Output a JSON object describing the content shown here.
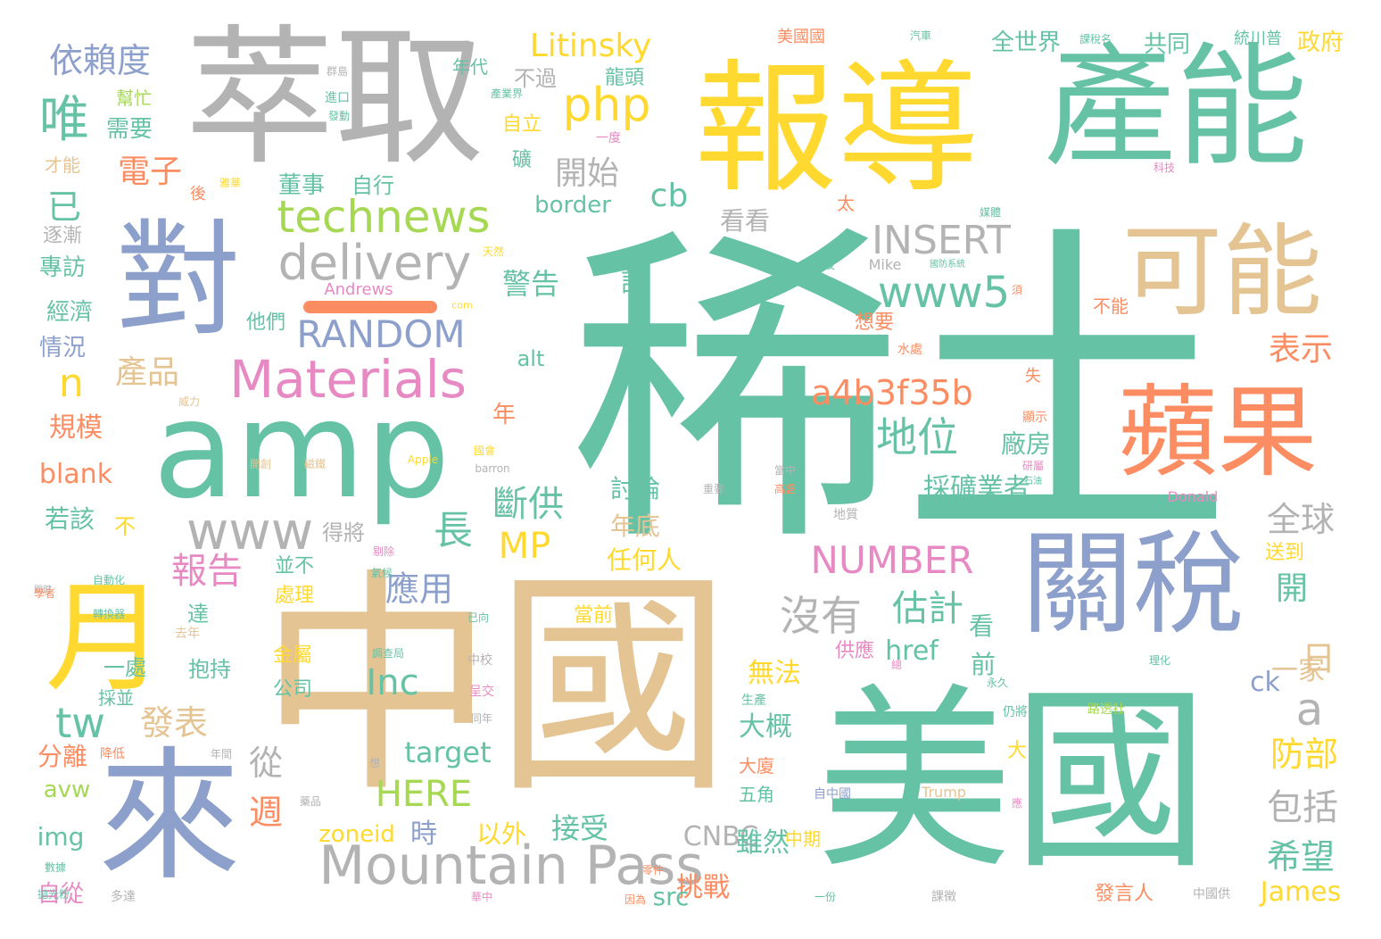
{
  "palette": {
    "teal": "#66c2a5",
    "orange": "#fc8d62",
    "blue": "#8da0cb",
    "pink": "#e78ac3",
    "lime": "#a6d854",
    "yellow": "#ffd92f",
    "tan": "#e5c494",
    "gray": "#b3b3b3"
  },
  "words": [
    {
      "text": "稀土",
      "color": "teal"
    },
    {
      "text": "中國",
      "color": "tan"
    },
    {
      "text": "美國",
      "color": "teal"
    },
    {
      "text": "萃取",
      "color": "gray"
    },
    {
      "text": "報導",
      "color": "yellow"
    },
    {
      "text": "產能",
      "color": "teal"
    },
    {
      "text": "amp",
      "color": "teal"
    },
    {
      "text": "對",
      "color": "blue"
    },
    {
      "text": "來",
      "color": "blue"
    },
    {
      "text": "月",
      "color": "yellow"
    },
    {
      "text": "關稅",
      "color": "blue"
    },
    {
      "text": "蘋果",
      "color": "orange"
    },
    {
      "text": "可能",
      "color": "tan"
    },
    {
      "text": "Mountain Pass",
      "color": "gray"
    },
    {
      "text": "technews",
      "color": "lime"
    },
    {
      "text": "Materials",
      "color": "pink"
    },
    {
      "text": "delivery",
      "color": "gray"
    },
    {
      "text": "www",
      "color": "gray"
    },
    {
      "text": "www5",
      "color": "teal"
    },
    {
      "text": "RANDOM",
      "color": "blue"
    },
    {
      "text": "INSERT",
      "color": "gray"
    },
    {
      "text": "a4b3f35b",
      "color": "orange"
    },
    {
      "text": "NUMBER",
      "color": "pink"
    },
    {
      "text": "php",
      "color": "yellow"
    },
    {
      "text": "Litinsky",
      "color": "yellow"
    },
    {
      "text": "依賴度",
      "color": "blue"
    },
    {
      "text": "唯",
      "color": "teal"
    },
    {
      "text": "tw",
      "color": "teal"
    },
    {
      "text": "n",
      "color": "yellow"
    },
    {
      "text": "地位",
      "color": "teal"
    },
    {
      "text": "沒有",
      "color": "gray"
    },
    {
      "text": "估計",
      "color": "teal"
    },
    {
      "text": "Inc",
      "color": "teal"
    },
    {
      "text": "HERE",
      "color": "lime"
    },
    {
      "text": "MP",
      "color": "yellow"
    },
    {
      "text": "cb",
      "color": "teal"
    },
    {
      "text": "斷供",
      "color": "teal"
    },
    {
      "text": "長",
      "color": "teal"
    },
    {
      "text": "a",
      "color": "gray"
    },
    {
      "text": "全球",
      "color": "gray"
    },
    {
      "text": "包括",
      "color": "gray"
    },
    {
      "text": "希望",
      "color": "teal"
    },
    {
      "text": "防部",
      "color": "yellow"
    },
    {
      "text": "表示",
      "color": "orange"
    },
    {
      "text": "日",
      "color": "tan"
    },
    {
      "text": "開",
      "color": "teal"
    },
    {
      "text": "一家",
      "color": "tan"
    },
    {
      "text": "James",
      "color": "yellow"
    },
    {
      "text": "ck",
      "color": "blue"
    },
    {
      "text": "開始",
      "color": "gray"
    },
    {
      "text": "電子",
      "color": "orange"
    },
    {
      "text": "已",
      "color": "teal"
    },
    {
      "text": "產品",
      "color": "tan"
    },
    {
      "text": "報告",
      "color": "pink"
    },
    {
      "text": "應用",
      "color": "blue"
    },
    {
      "text": "發表",
      "color": "tan"
    },
    {
      "text": "從",
      "color": "gray"
    },
    {
      "text": "週",
      "color": "orange"
    },
    {
      "text": "target",
      "color": "teal"
    },
    {
      "text": "zoneid",
      "color": "yellow"
    },
    {
      "text": "時",
      "color": "blue"
    },
    {
      "text": "接受",
      "color": "teal"
    },
    {
      "text": "以外",
      "color": "yellow"
    },
    {
      "text": "CNBC",
      "color": "gray"
    },
    {
      "text": "挑戰",
      "color": "orange"
    },
    {
      "text": "src",
      "color": "teal"
    },
    {
      "text": "雖然",
      "color": "teal"
    },
    {
      "text": "大概",
      "color": "teal"
    },
    {
      "text": "無法",
      "color": "yellow"
    },
    {
      "text": "防部",
      "color": "yellow"
    },
    {
      "text": "警告",
      "color": "teal"
    },
    {
      "text": "說",
      "color": "teal"
    },
    {
      "text": "看看",
      "color": "gray"
    },
    {
      "text": "採礦業者",
      "color": "teal"
    },
    {
      "text": "廠房",
      "color": "teal"
    },
    {
      "text": "討論",
      "color": "teal"
    },
    {
      "text": "年底",
      "color": "tan"
    },
    {
      "text": "任何人",
      "color": "yellow"
    },
    {
      "text": "前",
      "color": "teal"
    },
    {
      "text": "看",
      "color": "teal"
    },
    {
      "text": "href",
      "color": "teal"
    },
    {
      "text": "供應",
      "color": "pink"
    },
    {
      "text": "經濟",
      "color": "teal"
    },
    {
      "text": "情況",
      "color": "blue"
    },
    {
      "text": "規模",
      "color": "orange"
    },
    {
      "text": "blank",
      "color": "orange"
    },
    {
      "text": "若該",
      "color": "teal"
    },
    {
      "text": "不",
      "color": "yellow"
    },
    {
      "text": "分離",
      "color": "orange"
    },
    {
      "text": "avw",
      "color": "lime"
    },
    {
      "text": "img",
      "color": "teal"
    },
    {
      "text": "自從",
      "color": "pink"
    },
    {
      "text": "專訪",
      "color": "teal"
    },
    {
      "text": "逐漸",
      "color": "gray"
    },
    {
      "text": "需要",
      "color": "teal"
    },
    {
      "text": "幫忙",
      "color": "lime"
    },
    {
      "text": "才能",
      "color": "tan"
    },
    {
      "text": "董事",
      "color": "teal"
    },
    {
      "text": "自行",
      "color": "teal"
    },
    {
      "text": "自立",
      "color": "yellow"
    },
    {
      "text": "礦",
      "color": "teal"
    },
    {
      "text": "不過",
      "color": "gray"
    },
    {
      "text": "龍頭",
      "color": "teal"
    },
    {
      "text": "全世界",
      "color": "teal"
    },
    {
      "text": "共同",
      "color": "teal"
    },
    {
      "text": "政府",
      "color": "yellow"
    },
    {
      "text": "border",
      "color": "teal"
    },
    {
      "text": "alt",
      "color": "teal"
    },
    {
      "text": "年",
      "color": "orange"
    },
    {
      "text": "他們",
      "color": "teal"
    },
    {
      "text": "想要",
      "color": "orange"
    },
    {
      "text": "得將",
      "color": "gray"
    },
    {
      "text": "並不",
      "color": "teal"
    },
    {
      "text": "處理",
      "color": "yellow"
    },
    {
      "text": "達",
      "color": "teal"
    },
    {
      "text": "抱持",
      "color": "teal"
    },
    {
      "text": "一處",
      "color": "teal"
    },
    {
      "text": "採並",
      "color": "teal"
    },
    {
      "text": "公司",
      "color": "teal"
    },
    {
      "text": "金屬",
      "color": "yellow"
    },
    {
      "text": "當前",
      "color": "yellow"
    },
    {
      "text": "送到",
      "color": "yellow"
    },
    {
      "text": "大",
      "color": "yellow"
    },
    {
      "text": "大廈",
      "color": "orange"
    },
    {
      "text": "五角",
      "color": "teal"
    },
    {
      "text": "中期",
      "color": "yellow"
    },
    {
      "text": "發言人",
      "color": "orange"
    },
    {
      "text": "太",
      "color": "orange"
    },
    {
      "text": "不能",
      "color": "orange"
    },
    {
      "text": "後",
      "color": "orange"
    },
    {
      "text": "年代",
      "color": "teal"
    },
    {
      "text": "美國國",
      "color": "orange"
    },
    {
      "text": "統川普",
      "color": "teal"
    },
    {
      "text": "Andrews",
      "color": "pink"
    },
    {
      "text": "Mike",
      "color": "gray"
    },
    {
      "text": "Apple",
      "color": "yellow"
    },
    {
      "text": "Donald",
      "color": "pink"
    },
    {
      "text": "Trump",
      "color": "tan"
    },
    {
      "text": "barron",
      "color": "gray"
    },
    {
      "text": "com",
      "color": "yellow"
    },
    {
      "text": "路透社",
      "color": "lime"
    },
    {
      "text": "自中國",
      "color": "blue"
    },
    {
      "text": "中國供",
      "color": "gray"
    },
    {
      "text": "仍將",
      "color": "teal"
    },
    {
      "text": "轉換器",
      "color": "teal"
    },
    {
      "text": "自動化",
      "color": "teal"
    },
    {
      "text": "降低",
      "color": "orange"
    },
    {
      "text": "多達",
      "color": "gray"
    },
    {
      "text": "數據",
      "color": "teal"
    },
    {
      "text": "一份",
      "color": "teal"
    },
    {
      "text": "零件",
      "color": "orange"
    },
    {
      "text": "國防系統",
      "color": "teal"
    },
    {
      "text": "調查局",
      "color": "teal"
    },
    {
      "text": "已向",
      "color": "teal"
    },
    {
      "text": "中校",
      "color": "gray"
    },
    {
      "text": "呈交",
      "color": "pink"
    },
    {
      "text": "同年",
      "color": "gray"
    },
    {
      "text": "當中",
      "color": "gray"
    },
    {
      "text": "高盛",
      "color": "orange"
    },
    {
      "text": "重要",
      "color": "gray"
    },
    {
      "text": "地質",
      "color": "gray"
    },
    {
      "text": "研屬",
      "color": "pink"
    },
    {
      "text": "石油",
      "color": "teal"
    },
    {
      "text": "永久",
      "color": "teal"
    },
    {
      "text": "理化",
      "color": "teal"
    },
    {
      "text": "生產",
      "color": "teal"
    },
    {
      "text": "媒體",
      "color": "teal"
    },
    {
      "text": "科技",
      "color": "pink"
    },
    {
      "text": "失",
      "color": "orange"
    },
    {
      "text": "顯示",
      "color": "orange"
    },
    {
      "text": "水處",
      "color": "orange"
    },
    {
      "text": "天然",
      "color": "yellow"
    },
    {
      "text": "國會",
      "color": "yellow"
    },
    {
      "text": "汽車",
      "color": "teal"
    },
    {
      "text": "課稅名",
      "color": "teal"
    },
    {
      "text": "一度",
      "color": "pink"
    },
    {
      "text": "進口",
      "color": "teal"
    },
    {
      "text": "發動",
      "color": "teal"
    },
    {
      "text": "產業界",
      "color": "teal"
    },
    {
      "text": "去年",
      "color": "tan"
    },
    {
      "text": "剔除",
      "color": "pink"
    },
    {
      "text": "氣候",
      "color": "teal"
    },
    {
      "text": "關鍵",
      "color": "gray"
    },
    {
      "text": "年間",
      "color": "gray"
    },
    {
      "text": "想",
      "color": "gray"
    },
    {
      "text": "課徵",
      "color": "gray"
    },
    {
      "text": "華中",
      "color": "pink"
    },
    {
      "text": "因為",
      "color": "orange"
    },
    {
      "text": "總",
      "color": "pink"
    },
    {
      "text": "應",
      "color": "pink"
    },
    {
      "text": "學者",
      "color": "orange"
    },
    {
      "text": "威力",
      "color": "tan"
    },
    {
      "text": "須",
      "color": "orange"
    },
    {
      "text": "磁鐵",
      "color": "tan"
    },
    {
      "text": "拋光粉",
      "color": "teal"
    },
    {
      "text": "開創",
      "color": "tan"
    },
    {
      "text": "藥品",
      "color": "gray"
    },
    {
      "text": "群島",
      "color": "gray"
    },
    {
      "text": "雅華",
      "color": "yellow"
    },
    {
      "text": "波及",
      "color": "teal"
    }
  ]
}
